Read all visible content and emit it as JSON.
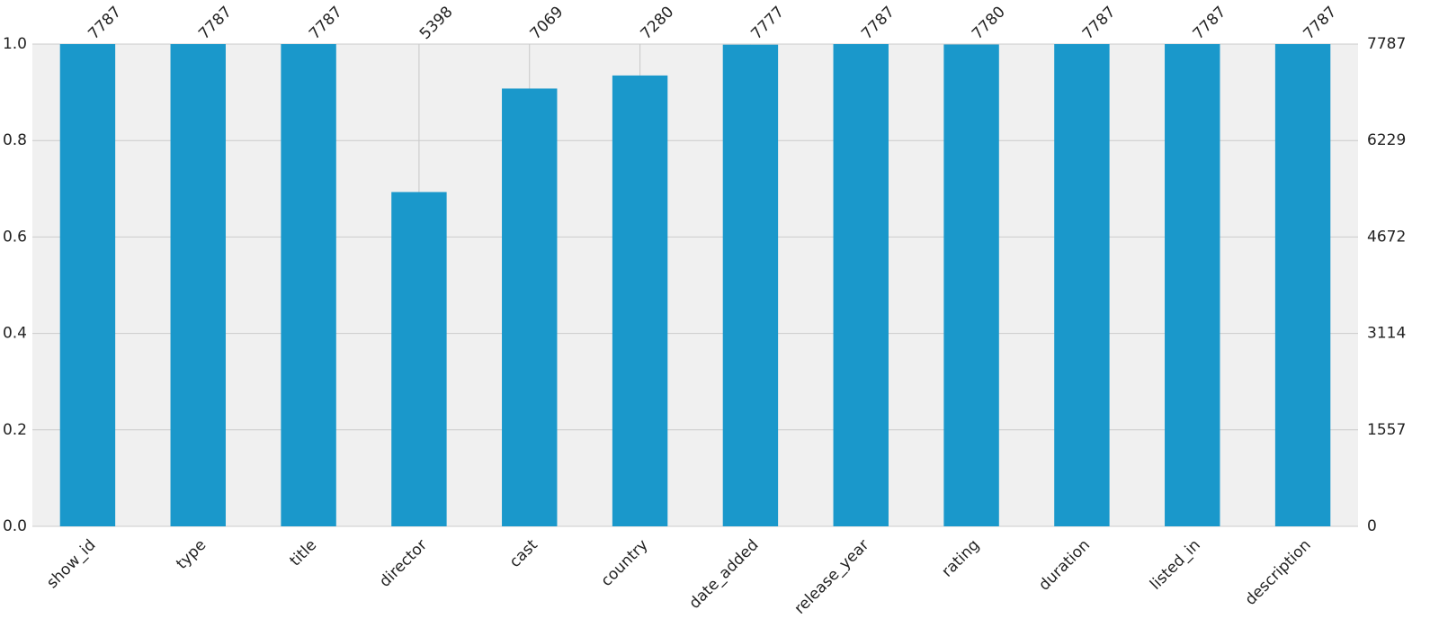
{
  "chart_data": {
    "type": "bar",
    "categories": [
      "show_id",
      "type",
      "title",
      "director",
      "cast",
      "country",
      "date_added",
      "release_year",
      "rating",
      "duration",
      "listed_in",
      "description"
    ],
    "series": [
      {
        "color": "#1a98cb",
        "axis": "y2",
        "values": [
          7787,
          7787,
          7787,
          5398,
          7069,
          7280,
          7777,
          7787,
          7780,
          7787,
          7787,
          7787
        ]
      }
    ],
    "ylim": [
      0,
      1
    ],
    "yticks": [
      {
        "value": 0,
        "label": "0.0"
      },
      0.2,
      0.4,
      0.6,
      0.8,
      {
        "value": 1,
        "label": "1.0"
      }
    ],
    "y2lim": [
      0,
      7787
    ],
    "y2ticks": [
      0,
      1557,
      3114,
      4672,
      6229,
      7787
    ],
    "grid": true
  }
}
